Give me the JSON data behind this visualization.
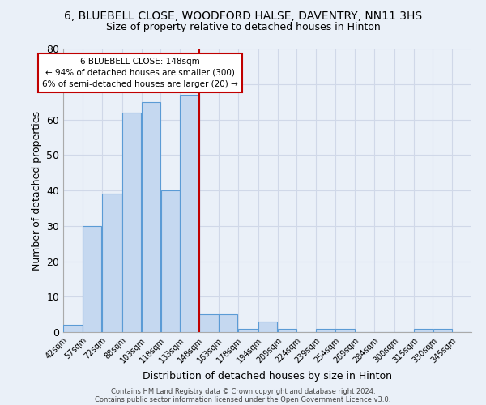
{
  "title": "6, BLUEBELL CLOSE, WOODFORD HALSE, DAVENTRY, NN11 3HS",
  "subtitle": "Size of property relative to detached houses in Hinton",
  "xlabel": "Distribution of detached houses by size in Hinton",
  "ylabel": "Number of detached properties",
  "bins": [
    42,
    57,
    72,
    88,
    103,
    118,
    133,
    148,
    163,
    178,
    194,
    209,
    224,
    239,
    254,
    269,
    284,
    300,
    315,
    330,
    345,
    360
  ],
  "bin_labels": [
    "42sqm",
    "57sqm",
    "72sqm",
    "88sqm",
    "103sqm",
    "118sqm",
    "133sqm",
    "148sqm",
    "163sqm",
    "178sqm",
    "194sqm",
    "209sqm",
    "224sqm",
    "239sqm",
    "254sqm",
    "269sqm",
    "284sqm",
    "300sqm",
    "315sqm",
    "330sqm",
    "345sqm"
  ],
  "values": [
    2,
    30,
    39,
    62,
    65,
    40,
    67,
    5,
    5,
    1,
    3,
    1,
    0,
    1,
    1,
    0,
    0,
    0,
    1,
    1,
    0
  ],
  "bar_color": "#c5d8f0",
  "bar_edge_color": "#5b9bd5",
  "vline_x": 148,
  "vline_color": "#c00000",
  "annotation_line1": "6 BLUEBELL CLOSE: 148sqm",
  "annotation_line2": "← 94% of detached houses are smaller (300)",
  "annotation_line3": "6% of semi-detached houses are larger (20) →",
  "annotation_box_color": "#c00000",
  "ylim": [
    0,
    80
  ],
  "yticks": [
    0,
    10,
    20,
    30,
    40,
    50,
    60,
    70,
    80
  ],
  "grid_color": "#d0d8e8",
  "bg_color": "#eaf0f8",
  "footer1": "Contains HM Land Registry data © Crown copyright and database right 2024.",
  "footer2": "Contains public sector information licensed under the Open Government Licence v3.0."
}
